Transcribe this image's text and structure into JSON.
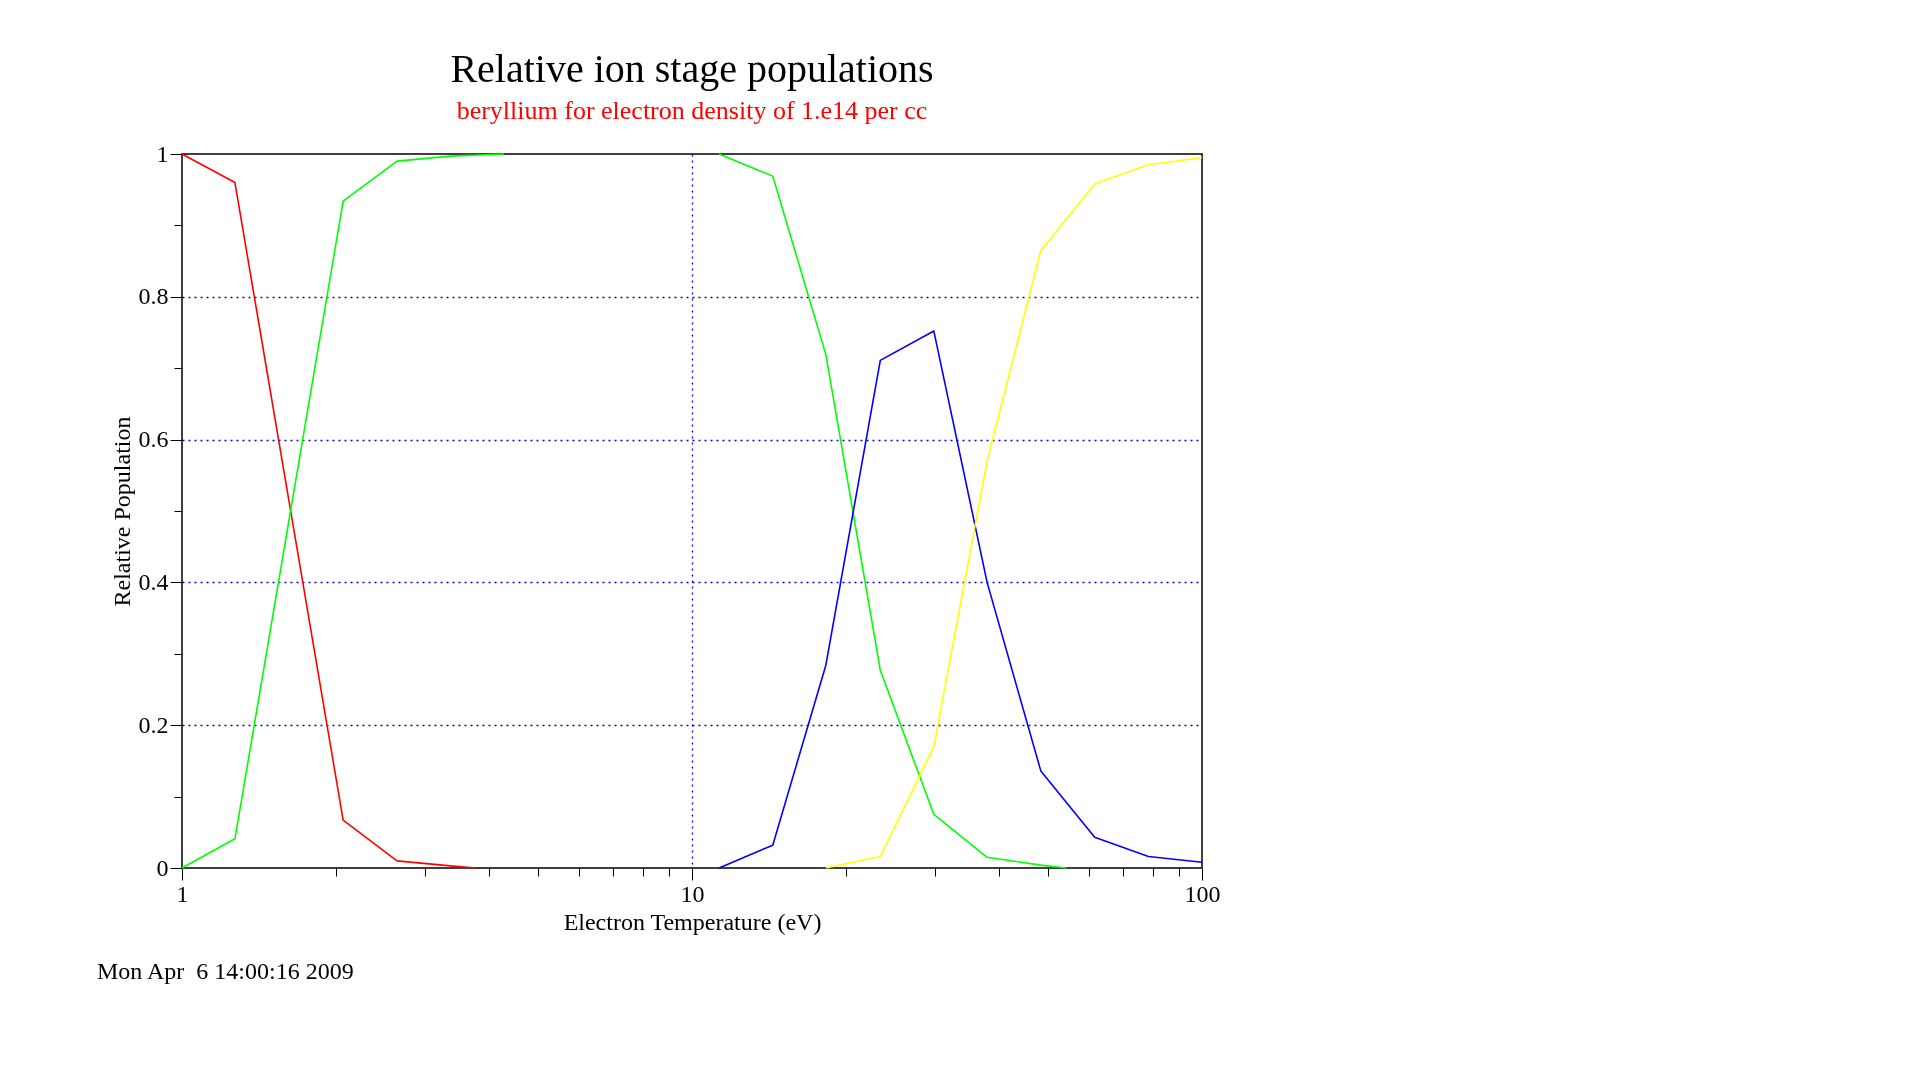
{
  "chart_data": {
    "type": "line",
    "title": "Relative ion stage populations",
    "subtitle": "beryllium for electron density of 1.e14 per cc",
    "xlabel": "Electron Temperature (eV)",
    "ylabel": "Relative Population",
    "log": "x",
    "grid": true,
    "line_style": "solid",
    "marker": "none",
    "xlim": [
      1,
      100
    ],
    "ylim": [
      0,
      1
    ],
    "xticks": [
      1,
      {
        "value": 2,
        "label": null
      },
      {
        "value": 3,
        "label": null
      },
      {
        "value": 4,
        "label": null
      },
      {
        "value": 5,
        "label": null
      },
      {
        "value": 6,
        "label": null
      },
      {
        "value": 7,
        "label": null
      },
      {
        "value": 8,
        "label": null
      },
      {
        "value": 9,
        "label": null
      },
      10,
      {
        "value": 20,
        "label": null
      },
      {
        "value": 30,
        "label": null
      },
      {
        "value": 40,
        "label": null
      },
      {
        "value": 50,
        "label": null
      },
      {
        "value": 60,
        "label": null
      },
      {
        "value": 70,
        "label": null
      },
      {
        "value": 80,
        "label": null
      },
      {
        "value": 90,
        "label": null
      },
      100
    ],
    "yticks": [
      0,
      {
        "value": 0.1,
        "label": null
      },
      0.2,
      {
        "value": 0.3,
        "label": null
      },
      0.4,
      {
        "value": 0.5,
        "label": null
      },
      0.6,
      {
        "value": 0.7,
        "label": null
      },
      0.8,
      {
        "value": 0.9,
        "label": null
      },
      1
    ],
    "series": [
      {
        "color": "#ff0000",
        "x": [
          1,
          1.27,
          2.07,
          2.64,
          3.36,
          3.77
        ],
        "values": [
          1,
          0.96,
          0.067,
          0.01,
          0.003,
          0
        ]
      },
      {
        "color": "#00ff00",
        "x": [
          1,
          1.27,
          2.07,
          2.64,
          3.36,
          4.28,
          5.46,
          6.95,
          8.86,
          11.3,
          14.4,
          18.3,
          23.4,
          29.8,
          37.9,
          48.3,
          54.2
        ],
        "values": [
          0,
          0.041,
          0.934,
          0.99,
          0.997,
          1,
          null,
          null,
          null,
          1,
          0.969,
          0.719,
          0.277,
          0.075,
          0.015,
          0.004,
          0
        ]
      },
      {
        "color": "#0000ff",
        "x": [
          11.3,
          14.4,
          18.3,
          23.4,
          29.8,
          37.9,
          48.3,
          61.6,
          78.5,
          100
        ],
        "values": [
          0,
          0.032,
          0.284,
          0.711,
          0.752,
          0.4,
          0.136,
          0.043,
          0.016,
          0.008
        ]
      },
      {
        "color": "#ffff00",
        "x": [
          18.3,
          23.4,
          29.8,
          37.9,
          48.3,
          61.6,
          78.5,
          100
        ],
        "values": [
          0,
          0.016,
          0.17,
          0.57,
          0.865,
          0.958,
          0.985,
          0.995
        ]
      }
    ],
    "annotations": [
      "Mon Apr  6 14:00:16 2009"
    ]
  }
}
